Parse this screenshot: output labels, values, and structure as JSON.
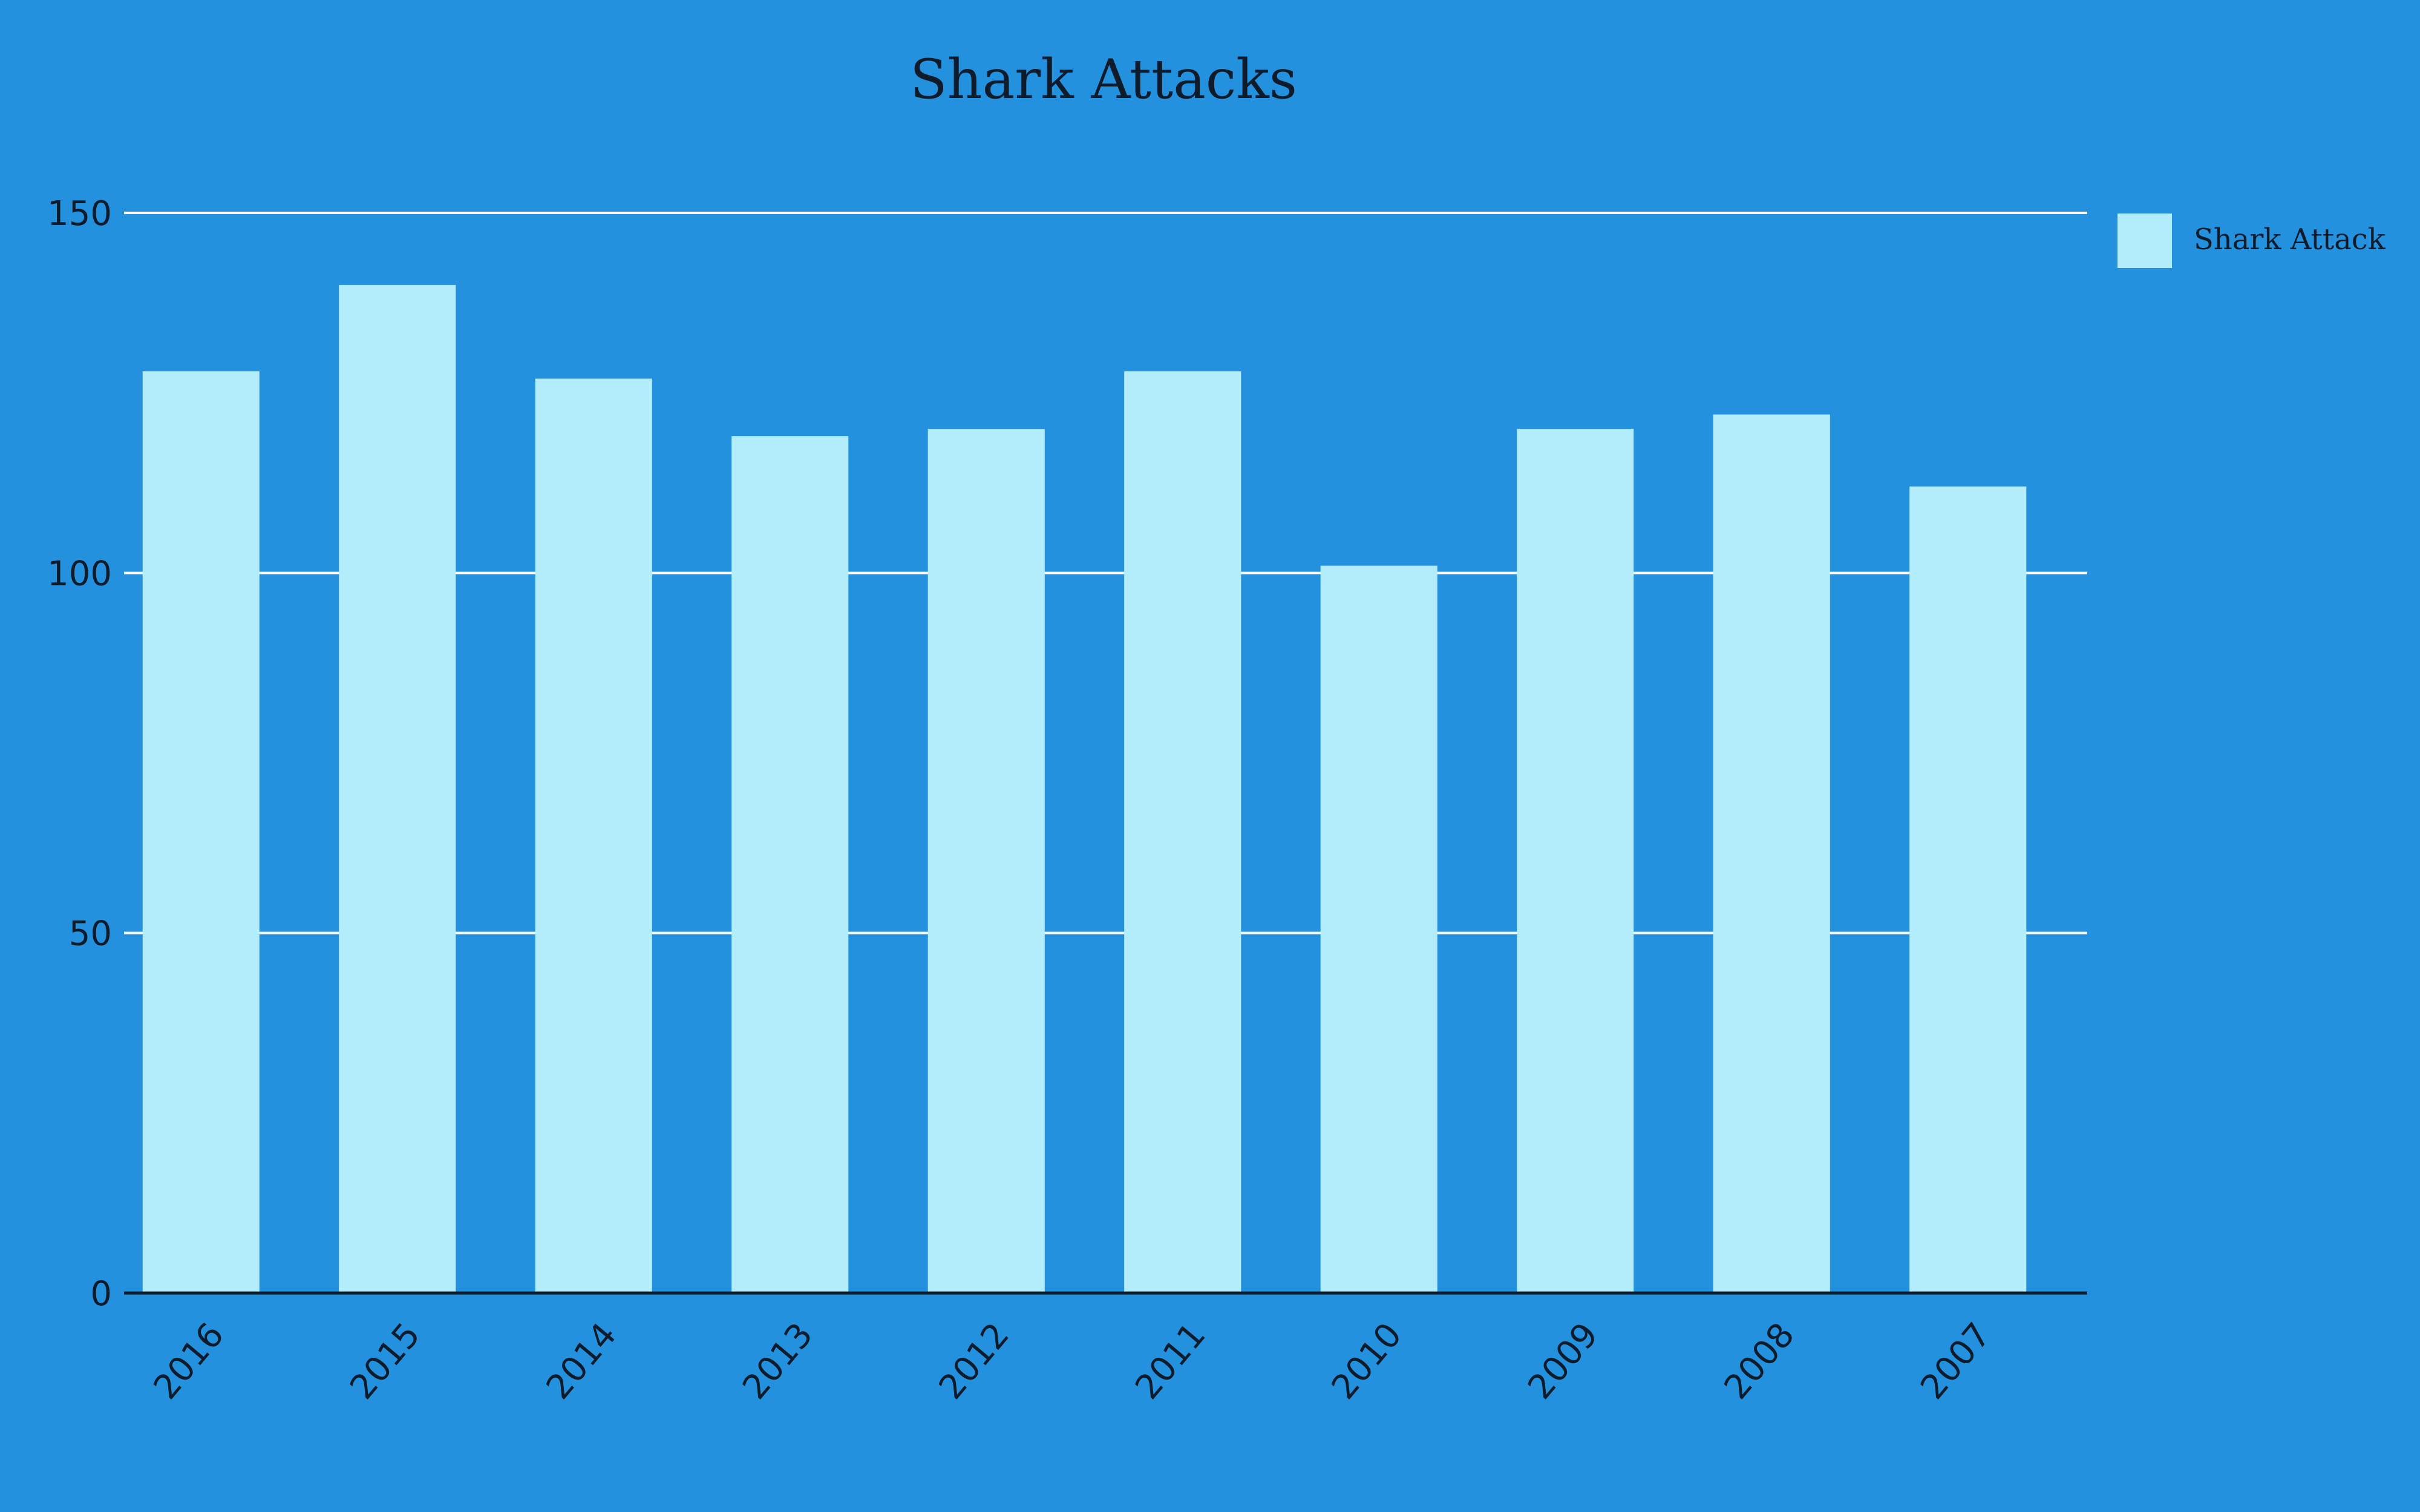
{
  "chart_data": {
    "type": "bar",
    "title": "Shark Attacks",
    "xlabel": "",
    "ylabel": "",
    "categories": [
      "2016",
      "2015",
      "2014",
      "2013",
      "2012",
      "2011",
      "2010",
      "2009",
      "2008",
      "2007"
    ],
    "series": [
      {
        "name": "Shark Attack",
        "values": [
          128,
          140,
          127,
          119,
          120,
          128,
          101,
          120,
          122,
          112
        ],
        "color": "#b3ecfb"
      }
    ],
    "ylim": [
      0,
      150
    ],
    "yticks": [
      0,
      50,
      100,
      150
    ],
    "grid": true,
    "legend_position": "top-right",
    "x_tick_rotation": "-45deg",
    "colors": {
      "background": "#2391de",
      "gridline": "#ffffff",
      "axis": "#0d1b2a",
      "text": "#0d1b2a"
    }
  }
}
